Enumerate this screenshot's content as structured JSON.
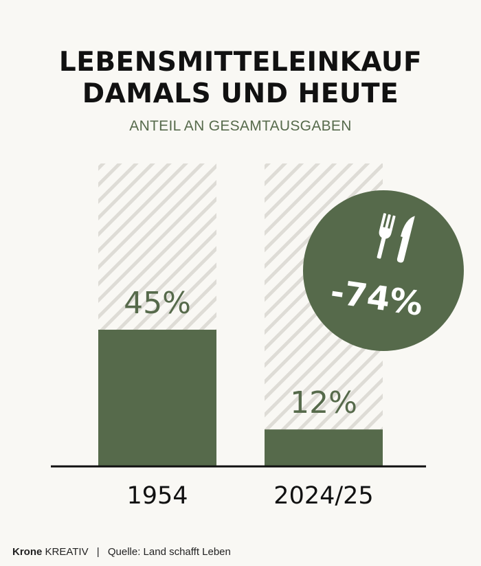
{
  "title_line1": "LEBENSMITTELEINKAUF",
  "title_line2": "DAMALS UND HEUTE",
  "subtitle": "ANTEIL AN GESAMTAUSGABEN",
  "badge": {
    "label": "-74%",
    "icon": "fork-knife-icon"
  },
  "footer": {
    "brand": "Krone",
    "brand_suffix": "KREATIV",
    "separator": "|",
    "source": "Quelle: Land schafft Leben"
  },
  "colors": {
    "accent": "#566a4b",
    "background": "#f9f8f4",
    "hatch": "#dedcd6",
    "text": "#111111"
  },
  "chart_data": {
    "type": "bar",
    "title": "LEBENSMITTELEINKAUF DAMALS UND HEUTE",
    "subtitle": "ANTEIL AN GESAMTAUSGABEN",
    "categories": [
      "1954",
      "2024/25"
    ],
    "values": [
      45,
      12
    ],
    "value_labels": [
      "45%",
      "12%"
    ],
    "ylim": [
      0,
      100
    ],
    "grid": false,
    "annotation": "-74%"
  }
}
